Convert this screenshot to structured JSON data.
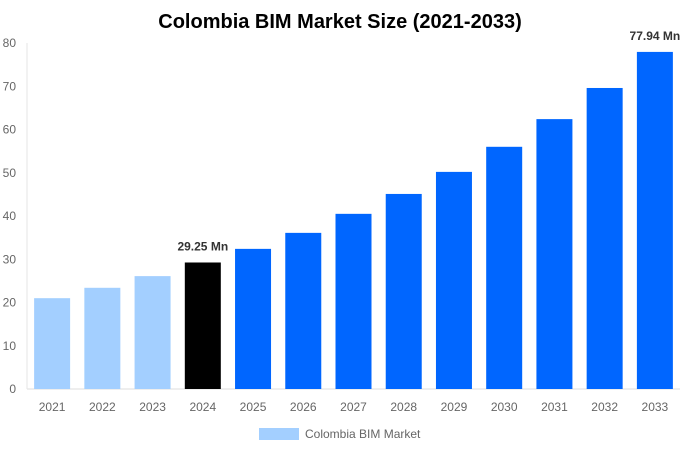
{
  "chart_data": {
    "type": "bar",
    "title": "Colombia BIM Market Size (2021-2033)",
    "categories": [
      "2021",
      "2022",
      "2023",
      "2024",
      "2025",
      "2026",
      "2027",
      "2028",
      "2029",
      "2030",
      "2031",
      "2032",
      "2033"
    ],
    "series": [
      {
        "name": "Colombia BIM Market",
        "values": [
          21.0,
          23.4,
          26.1,
          29.25,
          32.4,
          36.1,
          40.5,
          45.1,
          50.2,
          56.0,
          62.4,
          69.6,
          77.94
        ]
      }
    ],
    "bar_colors": [
      "#a3cfff",
      "#a3cfff",
      "#a3cfff",
      "#000000",
      "#0066ff",
      "#0066ff",
      "#0066ff",
      "#0066ff",
      "#0066ff",
      "#0066ff",
      "#0066ff",
      "#0066ff",
      "#0066ff"
    ],
    "data_labels": {
      "3": "29.25 Mn",
      "12": "77.94 Mn"
    },
    "yticks": [
      "0",
      "10",
      "20",
      "30",
      "40",
      "50",
      "60",
      "70",
      "80"
    ],
    "ylim": [
      0,
      80
    ],
    "xlabel": "",
    "ylabel": "",
    "grid": false,
    "legend": {
      "position": "bottom",
      "label": "Colombia BIM Market",
      "color": "#a3cfff"
    }
  }
}
